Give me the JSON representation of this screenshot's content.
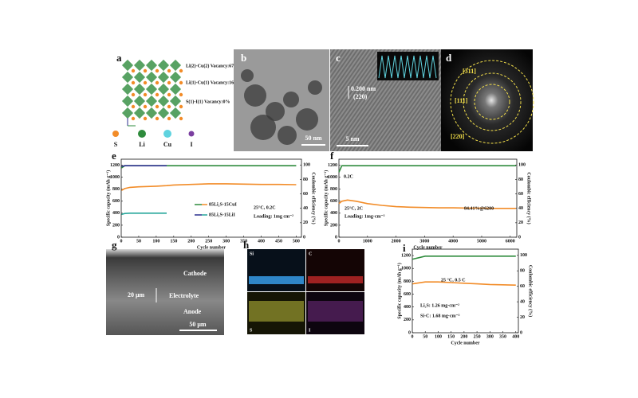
{
  "panels": {
    "a": {
      "label": "a",
      "sites": [
        "Li(2)-Cu(2) Vacancy:67.6%",
        "Li(1)-Cu(1) Vacancy:16.19%",
        "S(1)-I(1) Vacancy:0%"
      ],
      "legend": [
        "S",
        "Li",
        "Cu",
        "I"
      ]
    },
    "b": {
      "label": "b",
      "scale": "50 nm"
    },
    "c": {
      "label": "c",
      "spacing": "0.200 nm",
      "plane": "(220)",
      "scale": "5 nm"
    },
    "d": {
      "label": "d",
      "rings": [
        "[311]",
        "[111]",
        "[220]"
      ]
    },
    "g": {
      "label": "g",
      "layers": [
        "Cathode",
        "Electrolyte",
        "Anode"
      ],
      "thickness": "20 μm",
      "scale": "50 μm"
    },
    "h": {
      "label": "h",
      "maps": [
        "Si",
        "C",
        "S",
        "I"
      ]
    }
  },
  "chart_data": [
    {
      "type": "line",
      "panel": "e",
      "xlabel": "Cycle number",
      "ylabel": "Specific capacity (mAh g⁻¹)",
      "y2label": "Coulombic efficiency (%)",
      "x": [
        1,
        10,
        25,
        50,
        100,
        130,
        150,
        200,
        250,
        300,
        350,
        400,
        450,
        500
      ],
      "series": [
        {
          "name": "85Li₂S-15CuI",
          "color": "#f28c28",
          "values": [
            780,
            810,
            830,
            840,
            850,
            860,
            870,
            880,
            890,
            890,
            885,
            880,
            880,
            875
          ]
        },
        {
          "color": "#2e8b3c",
          "axis": "y2",
          "values": [
            96,
            99,
            99,
            99,
            99,
            99,
            99,
            99,
            99,
            99,
            99,
            99,
            99,
            99
          ]
        },
        {
          "name": "85Li₂S-15LiI",
          "color": "#26a69a",
          "values": [
            380,
            395,
            400,
            400,
            400,
            400,
            null,
            null,
            null,
            null,
            null,
            null,
            null,
            null
          ]
        },
        {
          "color": "#2b2f8f",
          "axis": "y2",
          "values": [
            98,
            99,
            99,
            99,
            99,
            99,
            null,
            null,
            null,
            null,
            null,
            null,
            null,
            null
          ]
        }
      ],
      "xlim": [
        0,
        515
      ],
      "xticks": [
        0,
        50,
        100,
        150,
        200,
        250,
        300,
        350,
        400,
        450,
        500
      ],
      "ylim": [
        0,
        1300
      ],
      "yticks": [
        0,
        200,
        400,
        600,
        800,
        1000,
        1200
      ],
      "y2lim": [
        0,
        108
      ],
      "y2ticks": [
        0,
        20,
        40,
        60,
        80,
        100
      ],
      "annotations": [
        "25°C, 0.2C",
        "Loading: 1mg cm⁻²"
      ]
    },
    {
      "type": "line",
      "panel": "f",
      "xlabel": "Cycle number",
      "ylabel": "Specific capacity (mAh g⁻¹)",
      "y2label": "Coulombic efficiency (%)",
      "x": [
        1,
        100,
        300,
        600,
        1000,
        1500,
        2000,
        2500,
        3000,
        3500,
        4000,
        4500,
        5000,
        5500,
        6000,
        6200
      ],
      "series": [
        {
          "color": "#f28c28",
          "values": [
            560,
            600,
            620,
            600,
            560,
            530,
            510,
            500,
            495,
            490,
            490,
            485,
            485,
            480,
            480,
            480
          ]
        },
        {
          "color": "#2e8b3c",
          "axis": "y2",
          "values": [
            90,
            99,
            99,
            99,
            99,
            99,
            99,
            99,
            99,
            99,
            99,
            99,
            99,
            99,
            99,
            99
          ]
        }
      ],
      "xlim": [
        0,
        6230
      ],
      "xticks": [
        0,
        1000,
        2000,
        3000,
        4000,
        5000,
        6000
      ],
      "ylim": [
        0,
        1300
      ],
      "yticks": [
        0,
        200,
        400,
        600,
        800,
        1000,
        1200
      ],
      "y2lim": [
        0,
        108
      ],
      "y2ticks": [
        0,
        20,
        40,
        60,
        80,
        100
      ],
      "annotations": [
        "0.2C",
        "25°C, 2C",
        "Loading: 1mg·cm⁻²",
        "84.41%@6200"
      ]
    },
    {
      "type": "line",
      "panel": "i",
      "xlabel": "Cycle number",
      "ylabel": "Specific capacity (mAh g⁻¹)",
      "y2label": "Coulombic efficiency (%)",
      "x": [
        1,
        50,
        100,
        150,
        200,
        250,
        300,
        350,
        400
      ],
      "series": [
        {
          "color": "#f28c28",
          "values": [
            760,
            790,
            790,
            780,
            770,
            760,
            750,
            745,
            740
          ]
        },
        {
          "color": "#2e8b3c",
          "axis": "y2",
          "values": [
            95,
            99,
            99,
            99,
            99,
            99,
            99,
            99,
            99
          ]
        }
      ],
      "xlim": [
        0,
        410
      ],
      "xticks": [
        0,
        50,
        100,
        150,
        200,
        250,
        300,
        350,
        400
      ],
      "ylim": [
        0,
        1300
      ],
      "yticks": [
        0,
        200,
        400,
        600,
        800,
        1000,
        1200
      ],
      "y2lim": [
        0,
        108
      ],
      "y2ticks": [
        0,
        20,
        40,
        60,
        80,
        100
      ],
      "annotations": [
        "25 °C, 0.5 C",
        "Li₂S: 1.26 mg·cm⁻²",
        "Si-C: 1.68 mg·cm⁻²"
      ]
    }
  ]
}
